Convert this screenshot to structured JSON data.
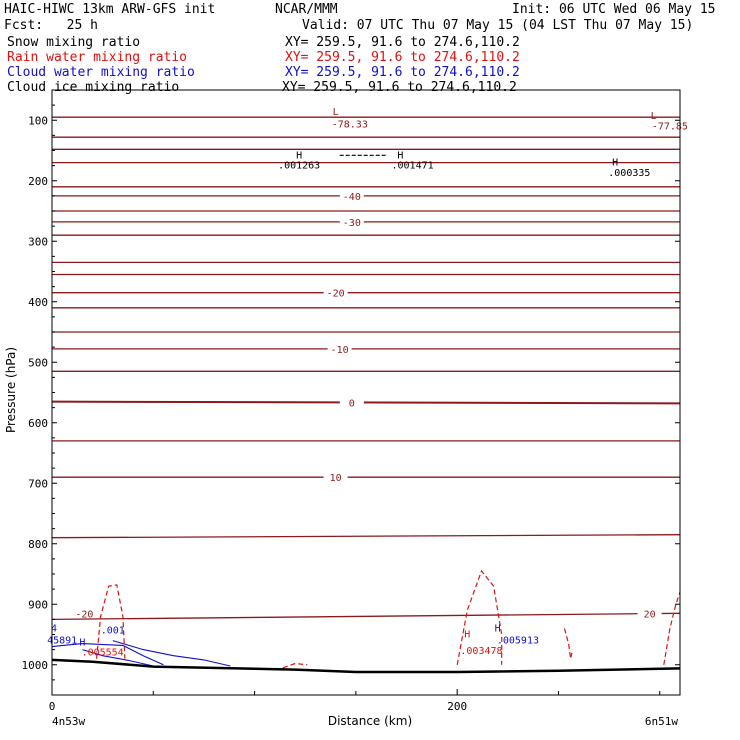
{
  "header": {
    "model": "HAIC-HIWC 13km ARW-GFS init",
    "org": "NCAR/MMM",
    "init": "Init: 06 UTC Wed 06 May 15",
    "fcst": "Fcst:   25 h",
    "valid": "Valid: 07 UTC Thu 07 May 15 (04 LST Thu 07 May 15)",
    "fields": [
      {
        "name": "Snow mixing ratio",
        "xy": "XY= 259.5, 91.6 to 274.6,110.2",
        "color": "#000000"
      },
      {
        "name": "Rain water mixing ratio",
        "xy": "XY= 259.5, 91.6 to 274.6,110.2",
        "color": "#e01010"
      },
      {
        "name": "Cloud water mixing ratio",
        "xy": "XY= 259.5, 91.6 to 274.6,110.2",
        "color": "#1010d0"
      },
      {
        "name": "Cloud ice mixing ratio",
        "xy": "XY= 259.5, 91.6 to 274.6,110.2",
        "color": "#000000"
      }
    ]
  },
  "chart_data": {
    "type": "line",
    "xlabel": "Distance (km)",
    "ylabel": "Pressure (hPa)",
    "xlim": [
      0,
      310
    ],
    "ylim": [
      50,
      1050
    ],
    "x_ticks": [
      0,
      200
    ],
    "y_ticks": [
      100,
      200,
      300,
      400,
      500,
      600,
      700,
      800,
      900,
      1000
    ],
    "x_end_labels": {
      "left": "4n53w",
      "right": "6n51w"
    },
    "colors": {
      "temperature": "#8b1a1a",
      "rain": "#e01010",
      "cloud_water": "#1010d0",
      "ground": "#000000"
    },
    "temperature_isotherms": [
      {
        "pressure": [
          95,
          95
        ],
        "label": ""
      },
      {
        "pressure": [
          128,
          128
        ],
        "label": ""
      },
      {
        "pressure": [
          148,
          148
        ],
        "label": ""
      },
      {
        "pressure": [
          170,
          170
        ],
        "label": ""
      },
      {
        "pressure": [
          210,
          210
        ],
        "label": ""
      },
      {
        "pressure": [
          225,
          225
        ],
        "label": "-40",
        "label_x": 148
      },
      {
        "pressure": [
          250,
          250
        ],
        "label": ""
      },
      {
        "pressure": [
          268,
          268
        ],
        "label": "-30",
        "label_x": 148
      },
      {
        "pressure": [
          290,
          290
        ],
        "label": ""
      },
      {
        "pressure": [
          335,
          335
        ],
        "label": ""
      },
      {
        "pressure": [
          355,
          355
        ],
        "label": ""
      },
      {
        "pressure": [
          385,
          385
        ],
        "label": "-20",
        "label_x": 140
      },
      {
        "pressure": [
          410,
          410
        ],
        "label": ""
      },
      {
        "pressure": [
          450,
          450
        ],
        "label": ""
      },
      {
        "pressure": [
          478,
          478
        ],
        "label": "-10",
        "label_x": 142
      },
      {
        "pressure": [
          515,
          515
        ],
        "label": ""
      },
      {
        "pressure": [
          565,
          568
        ],
        "label": "0",
        "label_x": 148
      },
      {
        "pressure": [
          630,
          630
        ],
        "label": ""
      },
      {
        "pressure": [
          690,
          690
        ],
        "label": "10",
        "label_x": 140
      },
      {
        "pressure": [
          790,
          785
        ],
        "label": ""
      },
      {
        "pressure": [
          925,
          915
        ],
        "label": "20",
        "label_x": 295
      }
    ],
    "max_min_labels": [
      {
        "text": "L",
        "x": 140,
        "p": 91,
        "color": "#8b1a1a"
      },
      {
        "text": "-78.33",
        "x": 147,
        "p": 112,
        "color": "#8b1a1a"
      },
      {
        "text": "L",
        "x": 297,
        "p": 98,
        "color": "#8b1a1a"
      },
      {
        "text": "-77.85",
        "x": 305,
        "p": 115,
        "color": "#8b1a1a"
      },
      {
        "text": "H",
        "x": 122,
        "p": 163,
        "color": "#000000"
      },
      {
        "text": ".001263",
        "x": 122,
        "p": 180,
        "color": "#000000"
      },
      {
        "text": "H",
        "x": 172,
        "p": 163,
        "color": "#000000"
      },
      {
        "text": ".001471",
        "x": 178,
        "p": 180,
        "color": "#000000"
      },
      {
        "text": "H",
        "x": 278,
        "p": 175,
        "color": "#000000"
      },
      {
        "text": ".000335",
        "x": 285,
        "p": 192,
        "color": "#000000"
      },
      {
        "text": "H",
        "x": 205,
        "p": 955,
        "color": "#e01010"
      },
      {
        "text": ".003478",
        "x": 212,
        "p": 982,
        "color": "#e01010"
      },
      {
        "text": "H",
        "x": 220,
        "p": 945,
        "color": "#1010d0"
      },
      {
        "text": ".005913",
        "x": 230,
        "p": 965,
        "color": "#1010d0"
      },
      {
        "text": "4",
        "x": 1,
        "p": 945,
        "color": "#1010d0"
      },
      {
        "text": "45891",
        "x": 5,
        "p": 965,
        "color": "#1010d0"
      },
      {
        "text": "H",
        "x": 15,
        "p": 968,
        "color": "#1010d0"
      },
      {
        "text": ".005554",
        "x": 25,
        "p": 985,
        "color": "#e01010"
      },
      {
        "text": ".001",
        "x": 30,
        "p": 948,
        "color": "#1010d0"
      },
      {
        "text": "-20",
        "x": 16,
        "p": 922,
        "color": "#8b1a1a"
      }
    ],
    "snow_segment": {
      "x": [
        142,
        165
      ],
      "p": [
        158,
        158
      ]
    },
    "rain_contours": [
      {
        "x": [
          22,
          24,
          28,
          32,
          35,
          36
        ],
        "p": [
          990,
          920,
          870,
          868,
          920,
          990
        ]
      },
      {
        "x": [
          200,
          205,
          212,
          218,
          222,
          222
        ],
        "p": [
          1000,
          910,
          845,
          870,
          950,
          1000
        ]
      },
      {
        "x": [
          253,
          255,
          256,
          257
        ],
        "p": [
          940,
          965,
          990,
          975
        ]
      },
      {
        "x": [
          302,
          305,
          308,
          310
        ],
        "p": [
          1000,
          940,
          900,
          880
        ]
      },
      {
        "x": [
          114,
          120,
          126
        ],
        "p": [
          1005,
          998,
          1000
        ]
      }
    ],
    "cloud_water_contours": [
      {
        "x": [
          0,
          15,
          35,
          45,
          55
        ],
        "p": [
          970,
          965,
          968,
          985,
          1000
        ]
      },
      {
        "x": [
          30,
          45,
          60,
          75,
          88
        ],
        "p": [
          960,
          975,
          985,
          992,
          1002
        ]
      },
      {
        "x": [
          15,
          25,
          38,
          50
        ],
        "p": [
          975,
          985,
          993,
          1002
        ]
      }
    ],
    "ground": {
      "x": [
        0,
        20,
        50,
        120,
        150,
        200,
        250,
        310
      ],
      "p": [
        992,
        995,
        1003,
        1008,
        1012,
        1012,
        1010,
        1006
      ]
    }
  }
}
